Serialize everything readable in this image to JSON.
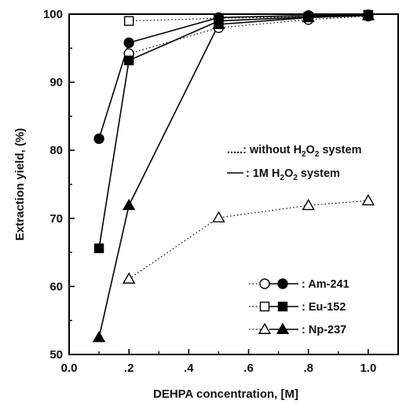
{
  "chart_data": {
    "type": "line",
    "xlabel": "DEHPA concentration, [M]",
    "ylabel": "Extraction yield, (%)",
    "xlim": [
      0.0,
      1.1
    ],
    "ylim": [
      50,
      100
    ],
    "x_ticks": [
      "0.0",
      ".2",
      ".4",
      ".6",
      ".8",
      "1.0"
    ],
    "y_ticks": [
      "50",
      "60",
      "70",
      "80",
      "90",
      "100"
    ],
    "grid": false,
    "series": [
      {
        "name": "Am-241",
        "system": "without H2O2",
        "line": "dotted",
        "marker": "circle",
        "filled": false,
        "color": "#000000",
        "x": [
          0.2,
          0.5,
          0.8,
          1.0
        ],
        "y": [
          94.2,
          98.0,
          99.2,
          99.7
        ]
      },
      {
        "name": "Eu-152",
        "system": "without H2O2",
        "line": "dotted",
        "marker": "square",
        "filled": false,
        "color": "#000000",
        "x": [
          0.2,
          0.5,
          0.8,
          1.0
        ],
        "y": [
          99.0,
          99.4,
          99.6,
          99.8
        ]
      },
      {
        "name": "Np-237",
        "system": "without H2O2",
        "line": "dotted",
        "marker": "triangle",
        "filled": false,
        "color": "#000000",
        "x": [
          0.2,
          0.5,
          0.8,
          1.0
        ],
        "y": [
          61.1,
          70.1,
          71.9,
          72.6
        ]
      },
      {
        "name": "Am-241",
        "system": "1M H2O2",
        "line": "solid",
        "marker": "circle",
        "filled": true,
        "color": "#000000",
        "x": [
          0.1,
          0.2,
          0.5,
          0.8,
          1.0
        ],
        "y": [
          81.7,
          95.8,
          99.5,
          99.8,
          99.9
        ]
      },
      {
        "name": "Eu-152",
        "system": "1M H2O2",
        "line": "solid",
        "marker": "square",
        "filled": true,
        "color": "#000000",
        "x": [
          0.1,
          0.2,
          0.5,
          0.8,
          1.0
        ],
        "y": [
          65.6,
          93.2,
          99.0,
          99.6,
          99.9
        ]
      },
      {
        "name": "Np-237",
        "system": "1M H2O2",
        "line": "solid",
        "marker": "triangle",
        "filled": true,
        "color": "#000000",
        "x": [
          0.1,
          0.2,
          0.5,
          0.8,
          1.0
        ],
        "y": [
          52.5,
          71.9,
          98.5,
          99.5,
          99.8
        ]
      }
    ],
    "legend_systems": {
      "dotted_prefix": ".....",
      "dotted_text": ": without H",
      "dotted_sub": "2",
      "dotted_mid": "O",
      "dotted_sub2": "2",
      "dotted_end": " system",
      "solid_text": ": 1M H",
      "solid_sub": "2",
      "solid_mid": "O",
      "solid_sub2": "2",
      "solid_end": " system"
    },
    "legend_isotopes": [
      {
        "label": ": Am-241",
        "marker": "circle"
      },
      {
        "label": ": Eu-152",
        "marker": "square"
      },
      {
        "label": ": Np-237",
        "marker": "triangle"
      }
    ],
    "legend_position": "right"
  }
}
